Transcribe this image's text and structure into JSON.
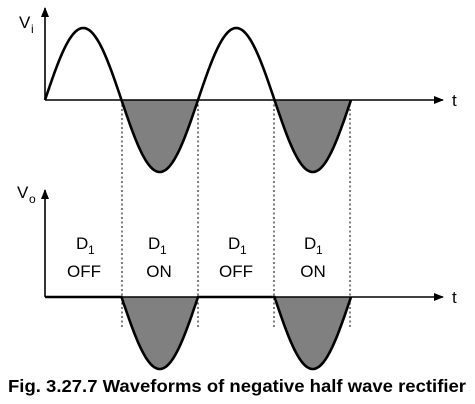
{
  "input_axis": {
    "label": "V",
    "subscript": "i",
    "time_label": "t"
  },
  "output_axis": {
    "label": "V",
    "subscript": "o",
    "time_label": "t"
  },
  "intervals": [
    {
      "diode": "D",
      "subscript": "1",
      "state": "OFF"
    },
    {
      "diode": "D",
      "subscript": "1",
      "state": "ON"
    },
    {
      "diode": "D",
      "subscript": "1",
      "state": "OFF"
    },
    {
      "diode": "D",
      "subscript": "1",
      "state": "ON"
    }
  ],
  "caption": "Fig. 3.27.7 Waveforms of negative half wave rectifier",
  "colors": {
    "waveform": "#000000",
    "shaded_fill": "#808080",
    "background": "#ffffff"
  }
}
